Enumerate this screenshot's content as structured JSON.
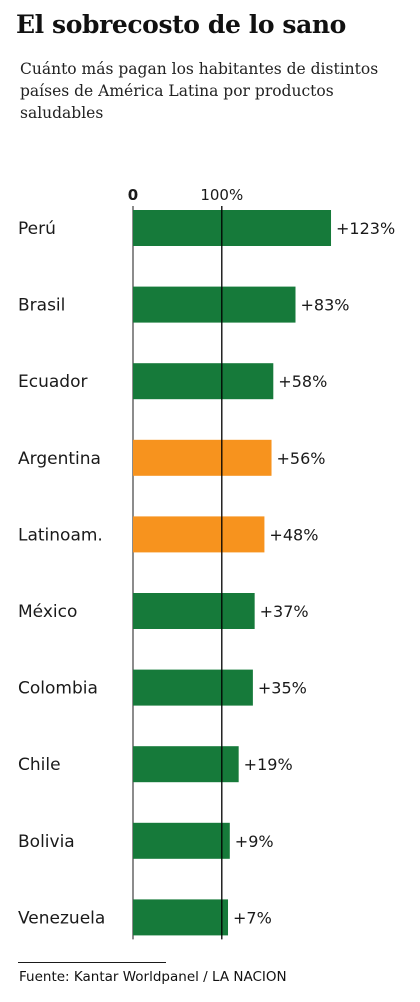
{
  "header": {
    "title": "El sobrecosto de lo sano",
    "subtitle": "Cuánto más pagan los habitantes de distintos países de América Latina por productos saludables"
  },
  "colors": {
    "country": "#167a3a",
    "aggregate_highlight": "#f7931e",
    "reference_line": "#000000"
  },
  "chart_data": {
    "type": "bar",
    "orientation": "horizontal",
    "categories": [
      "Perú",
      "Brasil",
      "Ecuador",
      "Argentina",
      "Latinoam.",
      "México",
      "Colombia",
      "Chile",
      "Bolivia",
      "Venezuela"
    ],
    "values": [
      123,
      83,
      58,
      56,
      48,
      37,
      35,
      19,
      9,
      7
    ],
    "value_labels": [
      "+123%",
      "+83%",
      "+58%",
      "+56%",
      "+48%",
      "+37%",
      "+35%",
      "+19%",
      "+9%",
      "+7%"
    ],
    "highlighted": [
      "Argentina",
      "Latinoam."
    ],
    "axis_ticks": [
      {
        "value": -100,
        "label": "0"
      },
      {
        "value": 0,
        "label": "100%"
      }
    ],
    "reference_line_at": 0,
    "xlim": [
      -100,
      130
    ],
    "grid": false,
    "legend": "none"
  },
  "footer": {
    "source": "Fuente: Kantar Worldpanel / LA NACION"
  }
}
